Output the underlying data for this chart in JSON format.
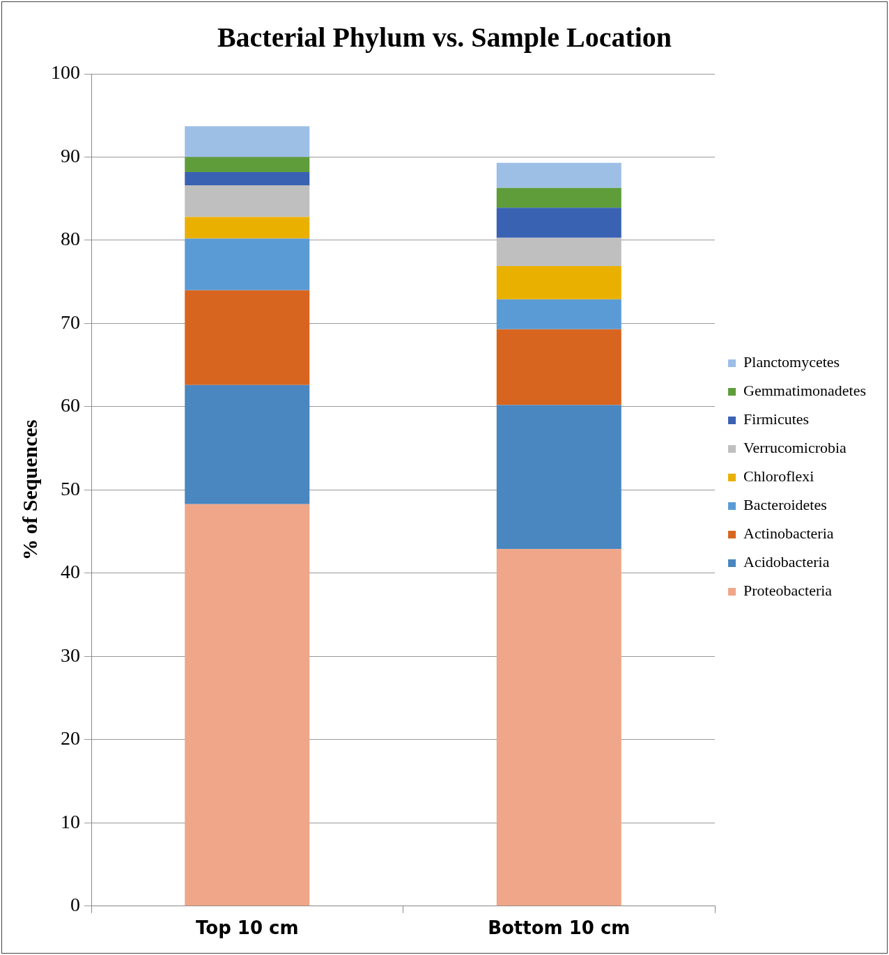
{
  "chart_data": {
    "type": "bar",
    "title": "Bacterial Phylum vs. Sample Location",
    "ylabel": "% of Sequences",
    "categories": [
      "Top 10 cm",
      "Bottom 10 cm"
    ],
    "stacked": true,
    "ylim": [
      0,
      100
    ],
    "yticks": [
      0,
      10,
      20,
      30,
      40,
      50,
      60,
      70,
      80,
      90,
      100
    ],
    "grid": "y",
    "legend": "right",
    "series": [
      {
        "name": "Proteobacteria",
        "color": "#f0a688",
        "values": [
          48.3,
          42.9
        ]
      },
      {
        "name": "Acidobacteria",
        "color": "#4a86c0",
        "values": [
          14.3,
          17.3
        ]
      },
      {
        "name": "Actinobacteria",
        "color": "#d8651f",
        "values": [
          11.4,
          9.1
        ]
      },
      {
        "name": "Bacteroidetes",
        "color": "#5b9bd5",
        "values": [
          6.2,
          3.6
        ]
      },
      {
        "name": "Chloroflexi",
        "color": "#eab000",
        "values": [
          2.6,
          4.0
        ]
      },
      {
        "name": "Verrucomicrobia",
        "color": "#bfbfbf",
        "values": [
          3.8,
          3.4
        ]
      },
      {
        "name": "Firmicutes",
        "color": "#3a62b2",
        "values": [
          1.6,
          3.6
        ]
      },
      {
        "name": "Gemmatimonadetes",
        "color": "#5f9d3a",
        "values": [
          1.8,
          2.4
        ]
      },
      {
        "name": "Planctomycetes",
        "color": "#9dbfe6",
        "values": [
          3.7,
          3.0
        ]
      }
    ]
  }
}
